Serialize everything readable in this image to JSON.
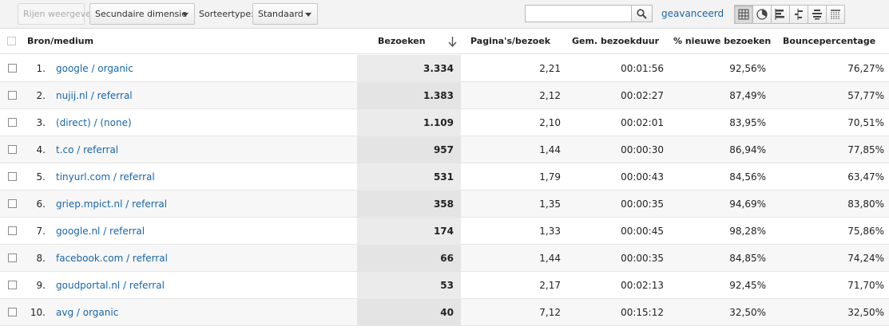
{
  "toolbar": {
    "rows_button": "Rijen weergeven",
    "secondary_dimension": "Secundaire dimensie",
    "sort_type_label": "Sorteertype:",
    "sort_type_value": "Standaard",
    "search_value": "",
    "advanced_link": "geavanceerd",
    "view_icons": [
      "table-view-icon",
      "pie-view-icon",
      "bar-view-icon",
      "comparison-view-icon",
      "term-cloud-view-icon",
      "pivot-view-icon"
    ]
  },
  "table": {
    "headers": {
      "source": "Bron/medium",
      "visits": "Bezoeken",
      "pages_per_visit": "Pagina's/bezoek",
      "avg_duration": "Gem. bezoekduur",
      "new_visits": "% nieuwe bezoeken",
      "bounce": "Bouncepercentage"
    },
    "rows": [
      {
        "n": "1.",
        "source": "google / organic",
        "visits": "3.334",
        "ppv": "2,21",
        "dur": "00:01:56",
        "newv": "92,56%",
        "bounce": "76,27%"
      },
      {
        "n": "2.",
        "source": "nujij.nl / referral",
        "visits": "1.383",
        "ppv": "2,12",
        "dur": "00:02:27",
        "newv": "87,49%",
        "bounce": "57,77%"
      },
      {
        "n": "3.",
        "source": "(direct) / (none)",
        "visits": "1.109",
        "ppv": "2,10",
        "dur": "00:02:01",
        "newv": "83,95%",
        "bounce": "70,51%"
      },
      {
        "n": "4.",
        "source": "t.co / referral",
        "visits": "957",
        "ppv": "1,44",
        "dur": "00:00:30",
        "newv": "86,94%",
        "bounce": "77,85%"
      },
      {
        "n": "5.",
        "source": "tinyurl.com / referral",
        "visits": "531",
        "ppv": "1,79",
        "dur": "00:00:43",
        "newv": "84,56%",
        "bounce": "63,47%"
      },
      {
        "n": "6.",
        "source": "griep.mpict.nl / referral",
        "visits": "358",
        "ppv": "1,35",
        "dur": "00:00:35",
        "newv": "94,69%",
        "bounce": "83,80%"
      },
      {
        "n": "7.",
        "source": "google.nl / referral",
        "visits": "174",
        "ppv": "1,33",
        "dur": "00:00:45",
        "newv": "98,28%",
        "bounce": "75,86%"
      },
      {
        "n": "8.",
        "source": "facebook.com / referral",
        "visits": "66",
        "ppv": "1,44",
        "dur": "00:00:35",
        "newv": "84,85%",
        "bounce": "74,24%"
      },
      {
        "n": "9.",
        "source": "goudportal.nl / referral",
        "visits": "53",
        "ppv": "2,17",
        "dur": "00:02:13",
        "newv": "92,45%",
        "bounce": "71,70%"
      },
      {
        "n": "10.",
        "source": "avg / organic",
        "visits": "40",
        "ppv": "7,12",
        "dur": "00:15:12",
        "newv": "32,50%",
        "bounce": "32,50%"
      }
    ]
  },
  "colors": {
    "link": "#1a66a6",
    "sorted_column_bg": "#ebebeb"
  }
}
